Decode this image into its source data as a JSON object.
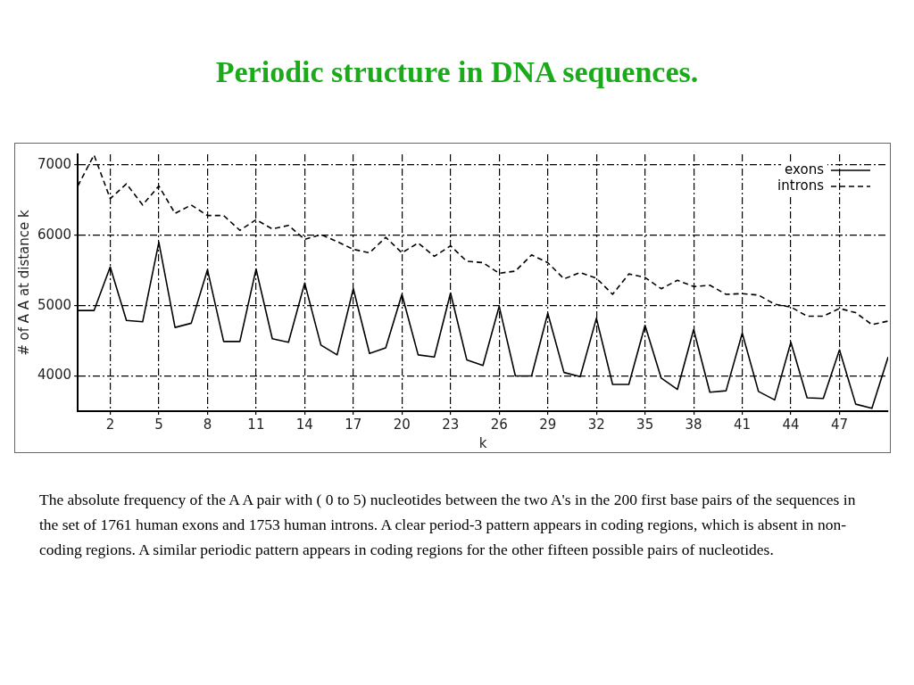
{
  "chart_data": {
    "type": "line",
    "title": "Periodic structure in DNA sequences.",
    "xlabel": "k",
    "ylabel": "# of A A at distance k",
    "x": [
      0,
      1,
      2,
      3,
      4,
      5,
      6,
      7,
      8,
      9,
      10,
      11,
      12,
      13,
      14,
      15,
      16,
      17,
      18,
      19,
      20,
      21,
      22,
      23,
      24,
      25,
      26,
      27,
      28,
      29,
      30,
      31,
      32,
      33,
      34,
      35,
      36,
      37,
      38,
      39,
      40,
      41,
      42,
      43,
      44,
      45,
      46,
      47,
      48,
      49,
      50
    ],
    "series": [
      {
        "name": "exons",
        "color": "#000000",
        "line_style": "solid",
        "values": [
          4930,
          4930,
          5550,
          4790,
          4770,
          5900,
          4690,
          4750,
          5510,
          4490,
          4490,
          5520,
          4530,
          4480,
          5320,
          4440,
          4300,
          5240,
          4320,
          4400,
          5160,
          4300,
          4270,
          5180,
          4230,
          4150,
          4990,
          4000,
          4000,
          4890,
          4050,
          3990,
          4820,
          3880,
          3880,
          4720,
          3970,
          3810,
          4660,
          3770,
          3790,
          4610,
          3780,
          3660,
          4480,
          3690,
          3680,
          4370,
          3600,
          3540,
          4270
        ]
      },
      {
        "name": "introns",
        "color": "#000000",
        "line_style": "dashed",
        "values": [
          6700,
          7140,
          6520,
          6730,
          6430,
          6700,
          6310,
          6430,
          6280,
          6280,
          6070,
          6220,
          6090,
          6140,
          5940,
          6010,
          5910,
          5800,
          5750,
          5970,
          5750,
          5890,
          5700,
          5850,
          5630,
          5610,
          5460,
          5490,
          5720,
          5610,
          5380,
          5470,
          5390,
          5160,
          5450,
          5400,
          5240,
          5360,
          5270,
          5290,
          5160,
          5170,
          5150,
          5020,
          4980,
          4850,
          4850,
          4960,
          4900,
          4730,
          4780
        ]
      }
    ],
    "xlim": [
      0,
      50
    ],
    "xticks": [
      2,
      5,
      8,
      11,
      14,
      17,
      20,
      23,
      26,
      29,
      32,
      35,
      38,
      41,
      44,
      47
    ],
    "ylim": [
      3500,
      7150
    ],
    "yticks": [
      4000,
      5000,
      6000,
      7000
    ],
    "grid": true,
    "legend": "top right",
    "marker": "none",
    "annotations": [
      "The absolute frequency of the A A pair with ( 0 to 5) nucleotides between the two A's in the 200 first base pairs of the sequences in the set of 1761 human exons and 1753 human introns. A clear period-3 pattern appears in coding regions, which is absent in non-coding regions. A similar periodic pattern appears in coding regions for the other fifteen possible pairs of nucleotides."
    ]
  }
}
